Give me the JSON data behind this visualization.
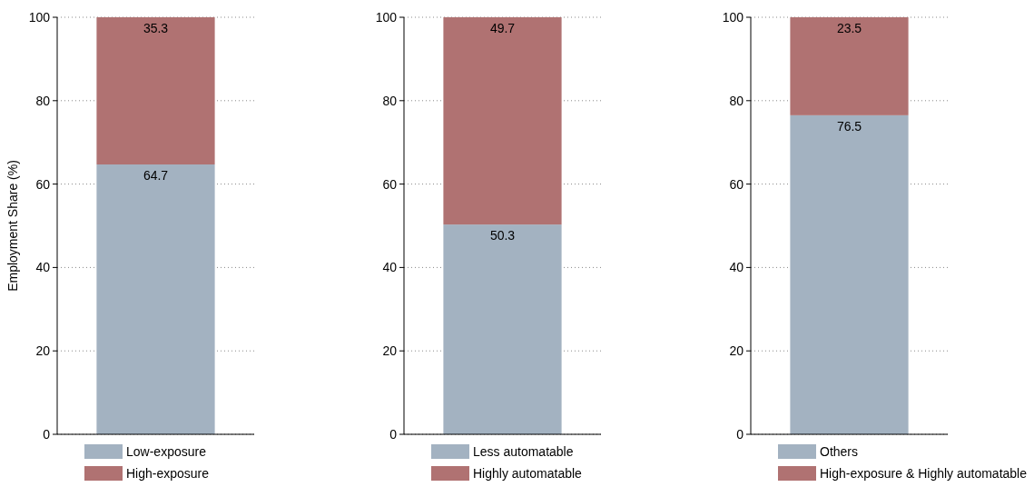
{
  "chart_data": [
    {
      "type": "bar",
      "stacked": true,
      "categories": [
        null
      ],
      "ylabel": "Employment Share (%)",
      "ylim": [
        0,
        100
      ],
      "yticks": [
        0,
        20,
        40,
        60,
        80,
        100
      ],
      "grid": "y",
      "legend": "bottom",
      "data_labels": true,
      "series": [
        {
          "name": "Low-exposure",
          "color": "#a3b2c1",
          "values": [
            64.7
          ]
        },
        {
          "name": "High-exposure",
          "color": "#b07272",
          "values": [
            35.3
          ]
        }
      ]
    },
    {
      "type": "bar",
      "stacked": true,
      "categories": [
        null
      ],
      "ylim": [
        0,
        100
      ],
      "yticks": [
        0,
        20,
        40,
        60,
        80,
        100
      ],
      "grid": "y",
      "legend": "bottom",
      "data_labels": true,
      "series": [
        {
          "name": "Less automatable",
          "color": "#a3b2c1",
          "values": [
            50.3
          ]
        },
        {
          "name": "Highly automatable",
          "color": "#b07272",
          "values": [
            49.7
          ]
        }
      ]
    },
    {
      "type": "bar",
      "stacked": true,
      "categories": [
        null
      ],
      "ylim": [
        0,
        100
      ],
      "yticks": [
        0,
        20,
        40,
        60,
        80,
        100
      ],
      "grid": "y",
      "legend": "bottom",
      "data_labels": true,
      "series": [
        {
          "name": "Others",
          "color": "#a3b2c1",
          "values": [
            76.5
          ]
        },
        {
          "name": "High-exposure & Highly automatable",
          "color": "#b07272",
          "values": [
            23.5
          ]
        }
      ]
    }
  ]
}
